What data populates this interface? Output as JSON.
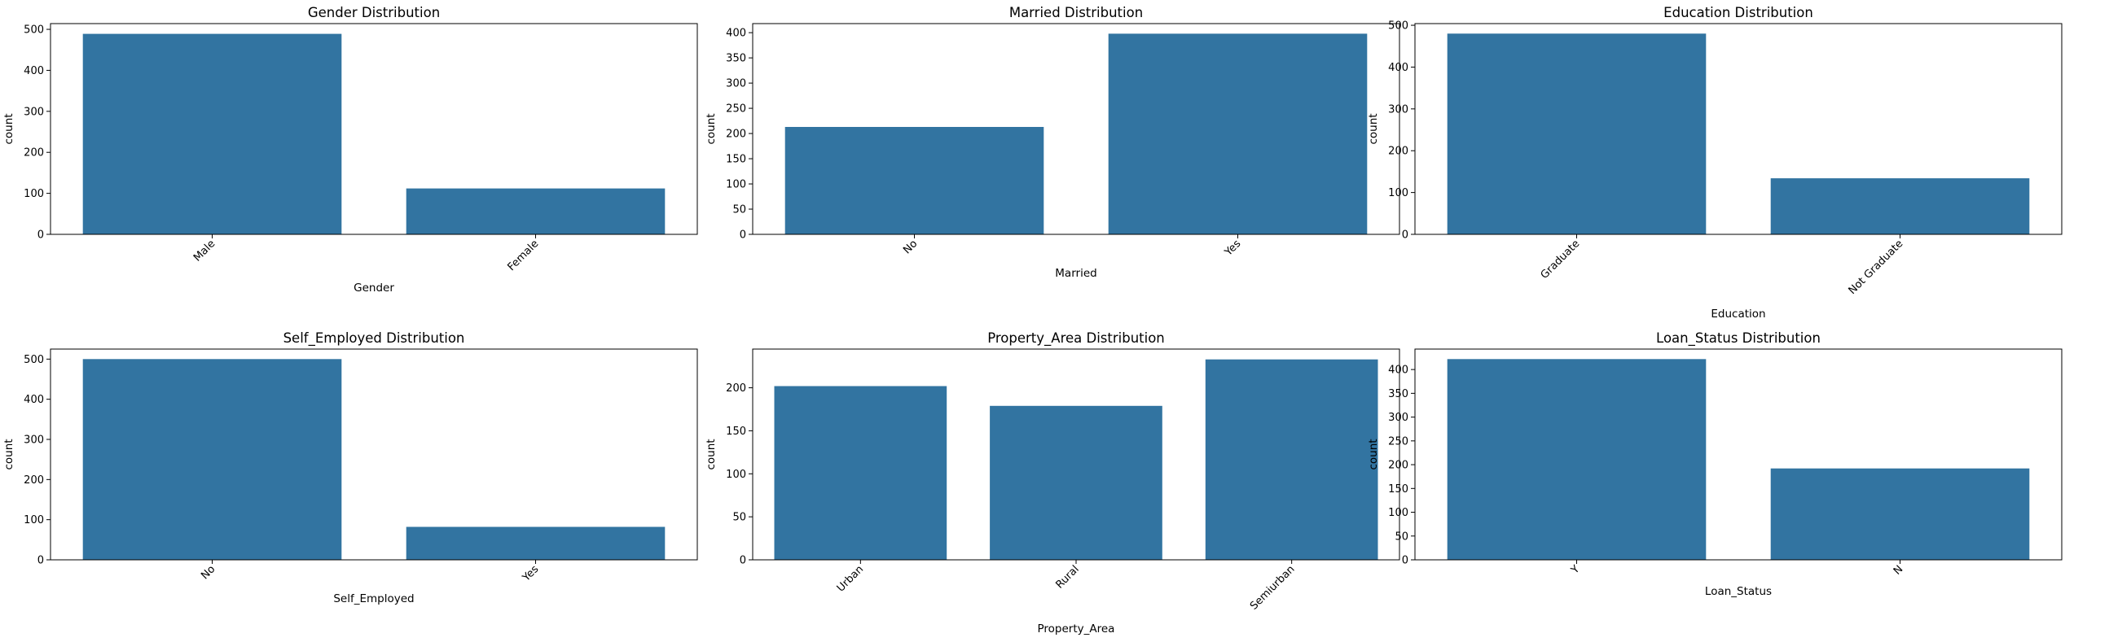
{
  "figure": {
    "bar_color": "#3274a1",
    "axis_color": "#000000"
  },
  "chart_data": [
    {
      "type": "bar",
      "title": "Gender Distribution",
      "xlabel": "Gender",
      "ylabel": "count",
      "categories": [
        "Male",
        "Female"
      ],
      "values": [
        489,
        112
      ],
      "yticks": [
        0,
        100,
        200,
        300,
        400,
        500
      ],
      "ylim": [
        0,
        514
      ],
      "grid": false
    },
    {
      "type": "bar",
      "title": "Married Distribution",
      "xlabel": "Married",
      "ylabel": "count",
      "categories": [
        "No",
        "Yes"
      ],
      "values": [
        213,
        398
      ],
      "yticks": [
        0,
        50,
        100,
        150,
        200,
        250,
        300,
        350,
        400
      ],
      "ylim": [
        0,
        418
      ],
      "grid": false
    },
    {
      "type": "bar",
      "title": "Education Distribution",
      "xlabel": "Education",
      "ylabel": "count",
      "categories": [
        "Graduate",
        "Not Graduate"
      ],
      "values": [
        480,
        134
      ],
      "yticks": [
        0,
        100,
        200,
        300,
        400,
        500
      ],
      "ylim": [
        0,
        504
      ],
      "grid": false
    },
    {
      "type": "bar",
      "title": "Self_Employed Distribution",
      "xlabel": "Self_Employed",
      "ylabel": "count",
      "categories": [
        "No",
        "Yes"
      ],
      "values": [
        500,
        82
      ],
      "yticks": [
        0,
        100,
        200,
        300,
        400,
        500
      ],
      "ylim": [
        0,
        525
      ],
      "grid": false
    },
    {
      "type": "bar",
      "title": "Property_Area Distribution",
      "xlabel": "Property_Area",
      "ylabel": "count",
      "categories": [
        "Urban",
        "Rural",
        "Semiurban"
      ],
      "values": [
        202,
        179,
        233
      ],
      "yticks": [
        0,
        50,
        100,
        150,
        200
      ],
      "ylim": [
        0,
        245
      ],
      "grid": false
    },
    {
      "type": "bar",
      "title": "Loan_Status Distribution",
      "xlabel": "Loan_Status",
      "ylabel": "count",
      "categories": [
        "Y",
        "N"
      ],
      "values": [
        422,
        192
      ],
      "yticks": [
        0,
        50,
        100,
        150,
        200,
        250,
        300,
        350,
        400
      ],
      "ylim": [
        0,
        443
      ],
      "grid": false
    }
  ]
}
